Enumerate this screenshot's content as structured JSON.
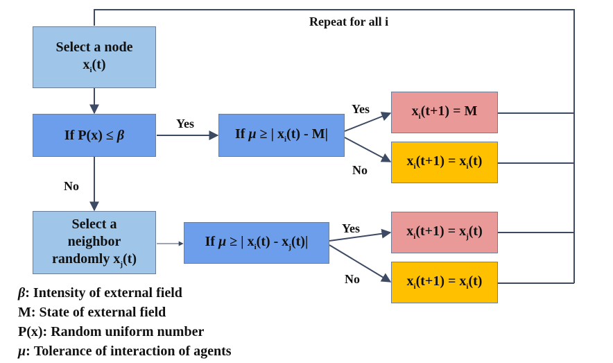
{
  "loop_label": "Repeat for all i",
  "boxes": {
    "select_node": {
      "line1": "Select a node",
      "line2_pre": "x",
      "sub_i": "i",
      "line2_post": "(t)"
    },
    "if_px": {
      "pre": "If P(x) ≤ ",
      "beta": "β"
    },
    "if_mu_m": {
      "pre": "If ",
      "mu": "μ",
      "mid": " ≥ | x",
      "sub_i": "i",
      "post": "(t) - M|"
    },
    "select_neighbor": {
      "line1": "Select a",
      "line2": "neighbor",
      "line3_pre": "randomly  x",
      "sub_j": "j",
      "line3_post": "(t)"
    },
    "if_mu_xj": {
      "pre": "If ",
      "mu": "μ",
      "mid": " ≥ | x",
      "sub_i": "i",
      "mid2": "(t) - x",
      "sub_j": "j",
      "post": "(t)|"
    },
    "out_m": {
      "a": "x",
      "sub_a": "i",
      "b": "(t+1) = M"
    },
    "out_xi_1": {
      "a": "x",
      "sub_a": "i",
      "b": "(t+1) = x",
      "sub_b": "i",
      "c": "(t)"
    },
    "out_xj": {
      "a": "x",
      "sub_a": "i",
      "b": "(t+1) = x",
      "sub_b": "j",
      "c": "(t)"
    },
    "out_xi_2": {
      "a": "x",
      "sub_a": "i",
      "b": "(t+1) = x",
      "sub_b": "i",
      "c": "(t)"
    }
  },
  "edge_labels": {
    "yes_1": "Yes",
    "no_1": "No",
    "yes_2": "Yes",
    "no_2": "No",
    "yes_3": "Yes",
    "no_3": "No"
  },
  "legend": [
    {
      "sym": "β",
      "text": ": Intensity of external field"
    },
    {
      "sym": "",
      "text": "M: State of external field"
    },
    {
      "sym": "",
      "text": "P(x): Random uniform number"
    },
    {
      "sym": "μ",
      "text": ": Tolerance of interaction of agents"
    }
  ],
  "colors": {
    "light_blue": "#9fc5e8",
    "blue": "#6d9eeb",
    "red": "#ea9999",
    "gold": "#ffc000",
    "line": "#3c4a63"
  }
}
